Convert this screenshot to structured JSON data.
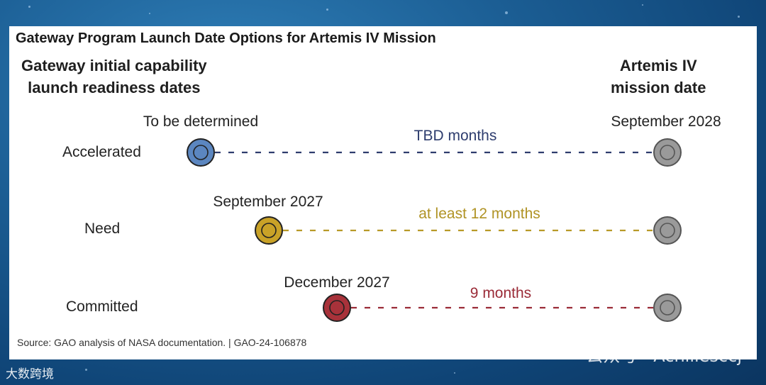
{
  "header": {
    "title": "Gateway Program Launch Date Options for Artemis IV Mission",
    "left_column": [
      "Gateway initial capability",
      "launch readiness dates"
    ],
    "right_column": [
      "Artemis IV",
      "mission date"
    ]
  },
  "rows": [
    {
      "label": "Accelerated",
      "start_date": "To be determined",
      "gap": "TBD months",
      "end_date": "September 2028",
      "color": "#5b86c0",
      "line_color": "#2e3d6e",
      "text_color": "#2e3d6e"
    },
    {
      "label": "Need",
      "start_date": "September 2027",
      "gap": "at least 12 months",
      "end_date": "",
      "color": "#c9a227",
      "line_color": "#b89a28",
      "text_color": "#b09325"
    },
    {
      "label": "Committed",
      "start_date": "December 2027",
      "gap": "9 months",
      "end_date": "",
      "color": "#a8323a",
      "line_color": "#9a2b37",
      "text_color": "#9a2b37"
    }
  ],
  "end_marker_color": "#9a9a9a",
  "footer": {
    "source": "Source: GAO analysis of NASA documentation. | GAO-24-106878"
  },
  "watermark": {
    "text": "公众号 · Achillesccj",
    "logo": "大数跨境"
  }
}
